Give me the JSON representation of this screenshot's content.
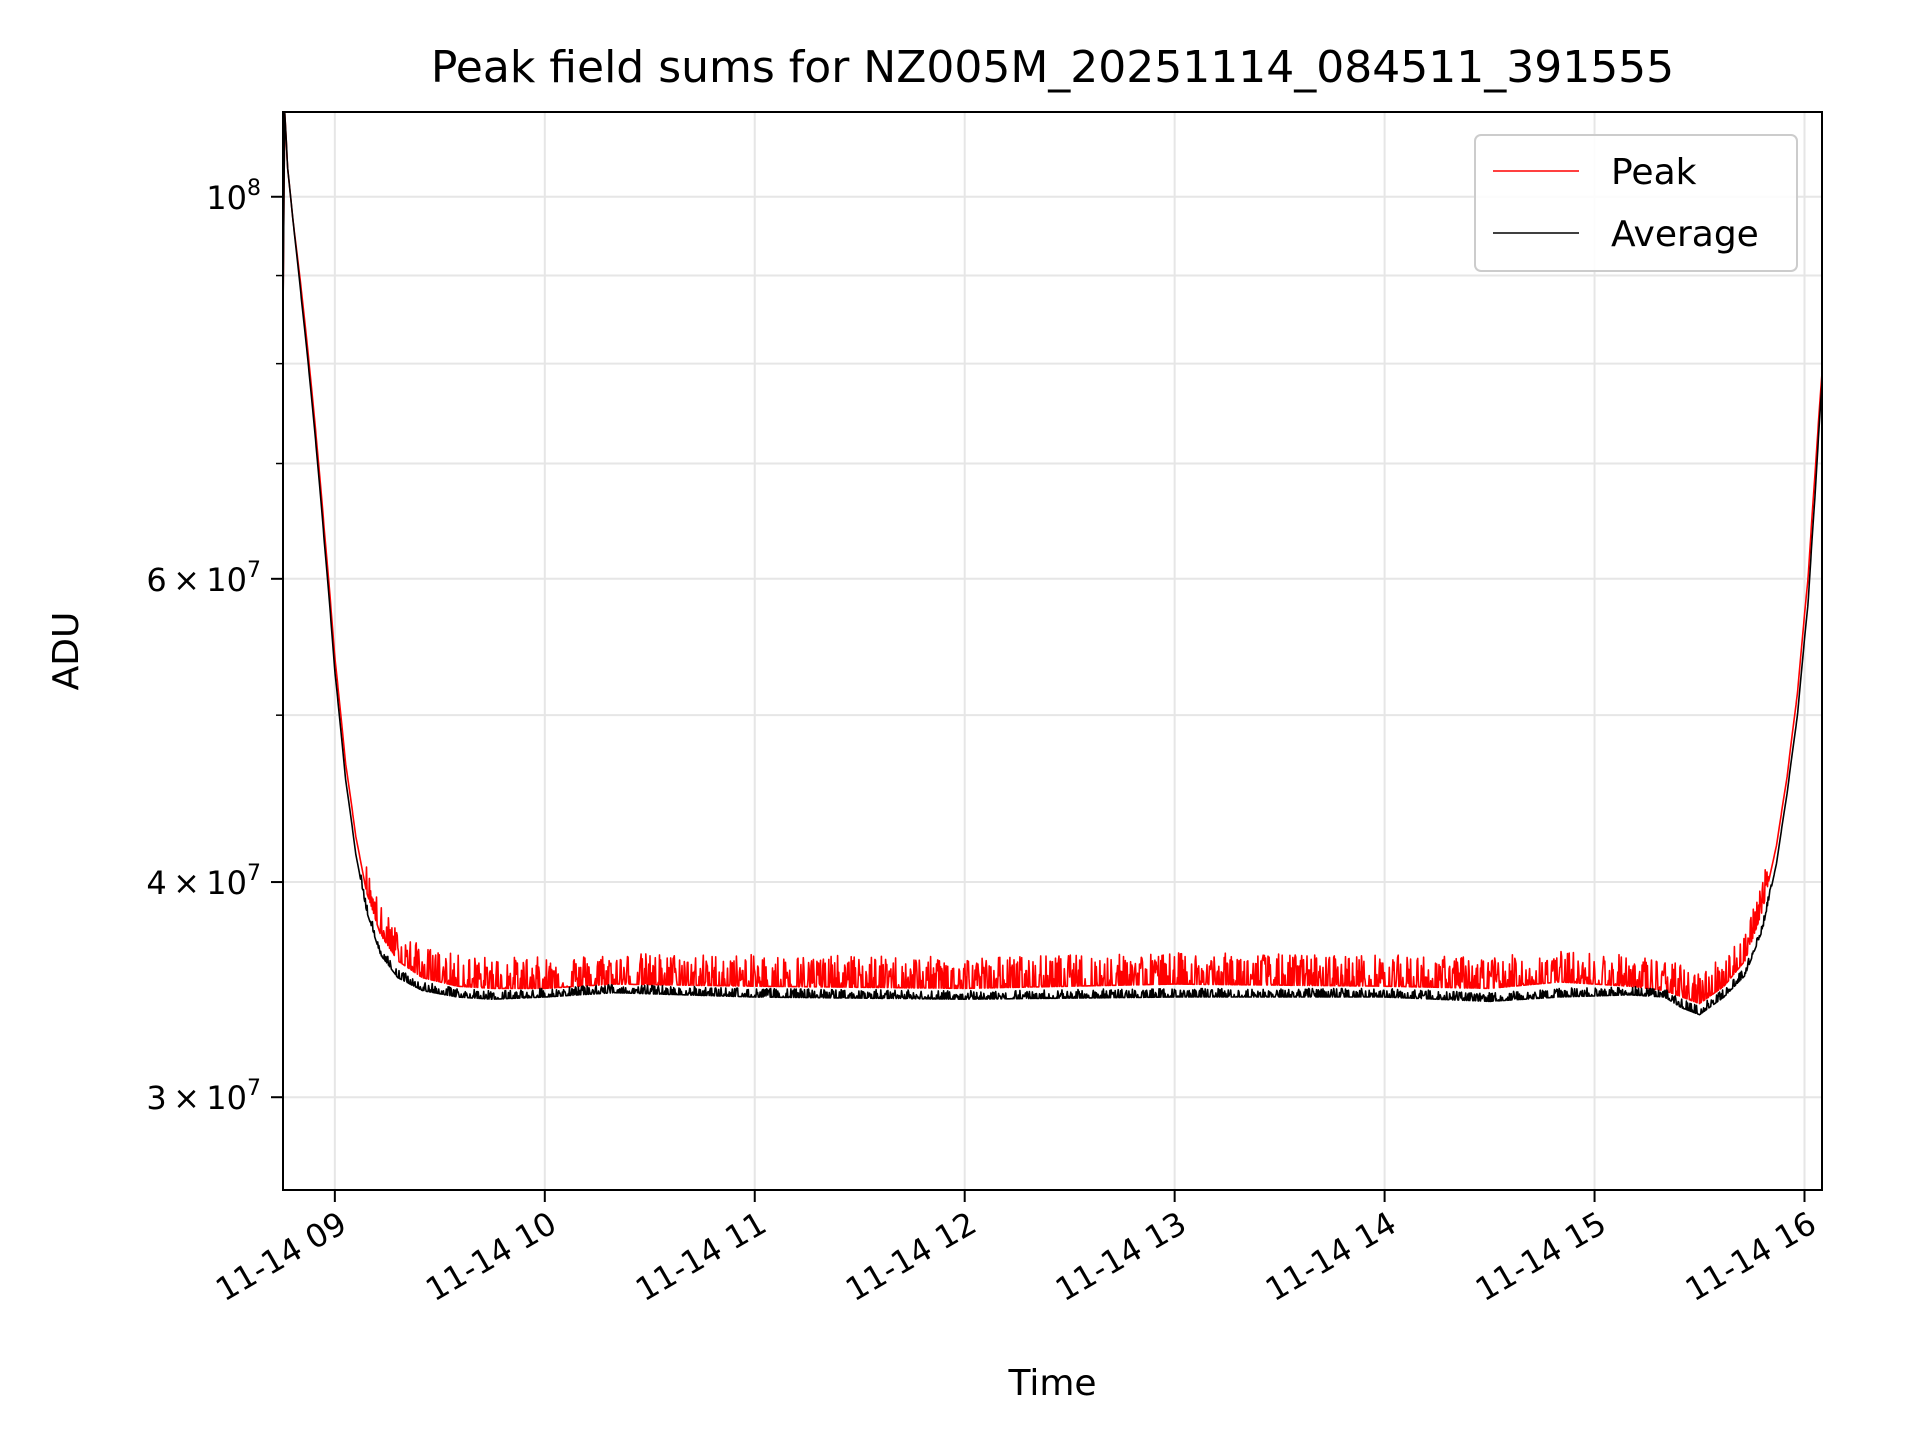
{
  "chart_data": {
    "type": "line",
    "title": "Peak field sums for NZ005M_20251114_084511_391555",
    "xlabel": "Time",
    "ylabel": "ADU",
    "yscale": "log",
    "ylim": [
      26500000,
      112000000
    ],
    "xlim": [
      "2025-11-14T08:45:11",
      "2025-11-14T16:05:00"
    ],
    "grid": true,
    "legend_position": "top-right",
    "x_ticks": [
      {
        "value": "2025-11-14T09:00:00",
        "label": "11-14 09"
      },
      {
        "value": "2025-11-14T10:00:00",
        "label": "11-14 10"
      },
      {
        "value": "2025-11-14T11:00:00",
        "label": "11-14 11"
      },
      {
        "value": "2025-11-14T12:00:00",
        "label": "11-14 12"
      },
      {
        "value": "2025-11-14T13:00:00",
        "label": "11-14 13"
      },
      {
        "value": "2025-11-14T14:00:00",
        "label": "11-14 14"
      },
      {
        "value": "2025-11-14T15:00:00",
        "label": "11-14 15"
      },
      {
        "value": "2025-11-14T16:00:00",
        "label": "11-14 16"
      }
    ],
    "y_major_ticks": [
      {
        "value": 30000000,
        "mantissa": "3",
        "exponent": "7"
      },
      {
        "value": 40000000,
        "mantissa": "4",
        "exponent": "7"
      },
      {
        "value": 60000000,
        "mantissa": "6",
        "exponent": "7"
      },
      {
        "value": 100000000,
        "mantissa": "",
        "exponent": "8"
      }
    ],
    "y_minor_ticks": [
      50000000,
      70000000,
      80000000,
      90000000
    ],
    "series": [
      {
        "name": "Peak",
        "color": "#ff0000",
        "noise_band": 1500000,
        "x": [
          "2025-11-14T08:45:11",
          "2025-11-14T08:45:40",
          "2025-11-14T08:46:30",
          "2025-11-14T08:48:00",
          "2025-11-14T08:50:30",
          "2025-11-14T08:54:00",
          "2025-11-14T08:57:00",
          "2025-11-14T09:00:00",
          "2025-11-14T09:03:00",
          "2025-11-14T09:06:00",
          "2025-11-14T09:09:00",
          "2025-11-14T09:13:00",
          "2025-11-14T09:18:00",
          "2025-11-14T09:25:00",
          "2025-11-14T09:35:00",
          "2025-11-14T09:45:00",
          "2025-11-14T10:00:00",
          "2025-11-14T10:20:00",
          "2025-11-14T11:00:00",
          "2025-11-14T12:00:00",
          "2025-11-14T13:00:00",
          "2025-11-14T14:00:00",
          "2025-11-14T14:30:00",
          "2025-11-14T14:50:00",
          "2025-11-14T15:10:00",
          "2025-11-14T15:20:00",
          "2025-11-14T15:25:00",
          "2025-11-14T15:30:00",
          "2025-11-14T15:37:00",
          "2025-11-14T15:43:00",
          "2025-11-14T15:48:00",
          "2025-11-14T15:52:00",
          "2025-11-14T15:55:00",
          "2025-11-14T15:58:00",
          "2025-11-14T16:01:00",
          "2025-11-14T16:03:00",
          "2025-11-14T16:05:00"
        ],
        "y": [
          85000000,
          112000000,
          104000000,
          97000000,
          88000000,
          75000000,
          64000000,
          54000000,
          47000000,
          42500000,
          39500000,
          37300000,
          36000000,
          35200000,
          34800000,
          34700000,
          34700000,
          34900000,
          34800000,
          34700000,
          34900000,
          34800000,
          34700000,
          35000000,
          34800000,
          34600000,
          34300000,
          34000000,
          34800000,
          36000000,
          38500000,
          42000000,
          46000000,
          51500000,
          60000000,
          69000000,
          79000000
        ]
      },
      {
        "name": "Average",
        "color": "#000000",
        "noise_band": 400000,
        "x": [
          "2025-11-14T08:45:11",
          "2025-11-14T08:45:40",
          "2025-11-14T08:46:30",
          "2025-11-14T08:48:00",
          "2025-11-14T08:50:30",
          "2025-11-14T08:54:00",
          "2025-11-14T08:57:00",
          "2025-11-14T09:00:00",
          "2025-11-14T09:03:00",
          "2025-11-14T09:06:00",
          "2025-11-14T09:09:00",
          "2025-11-14T09:13:00",
          "2025-11-14T09:18:00",
          "2025-11-14T09:25:00",
          "2025-11-14T09:35:00",
          "2025-11-14T09:45:00",
          "2025-11-14T10:00:00",
          "2025-11-14T10:20:00",
          "2025-11-14T11:00:00",
          "2025-11-14T12:00:00",
          "2025-11-14T13:00:00",
          "2025-11-14T14:00:00",
          "2025-11-14T14:30:00",
          "2025-11-14T14:50:00",
          "2025-11-14T15:10:00",
          "2025-11-14T15:20:00",
          "2025-11-14T15:25:00",
          "2025-11-14T15:30:00",
          "2025-11-14T15:37:00",
          "2025-11-14T15:43:00",
          "2025-11-14T15:48:00",
          "2025-11-14T15:52:00",
          "2025-11-14T15:55:00",
          "2025-11-14T15:58:00",
          "2025-11-14T16:01:00",
          "2025-11-14T16:03:00",
          "2025-11-14T16:05:00"
        ],
        "y": [
          85000000,
          112000000,
          104000000,
          97000000,
          87000000,
          74000000,
          63000000,
          53000000,
          46000000,
          41500000,
          38500000,
          36300000,
          35200000,
          34600000,
          34300000,
          34200000,
          34300000,
          34500000,
          34300000,
          34200000,
          34300000,
          34300000,
          34100000,
          34300000,
          34400000,
          34300000,
          33800000,
          33500000,
          34300000,
          35300000,
          37500000,
          41000000,
          45000000,
          50000000,
          58000000,
          67000000,
          78000000
        ]
      }
    ]
  }
}
